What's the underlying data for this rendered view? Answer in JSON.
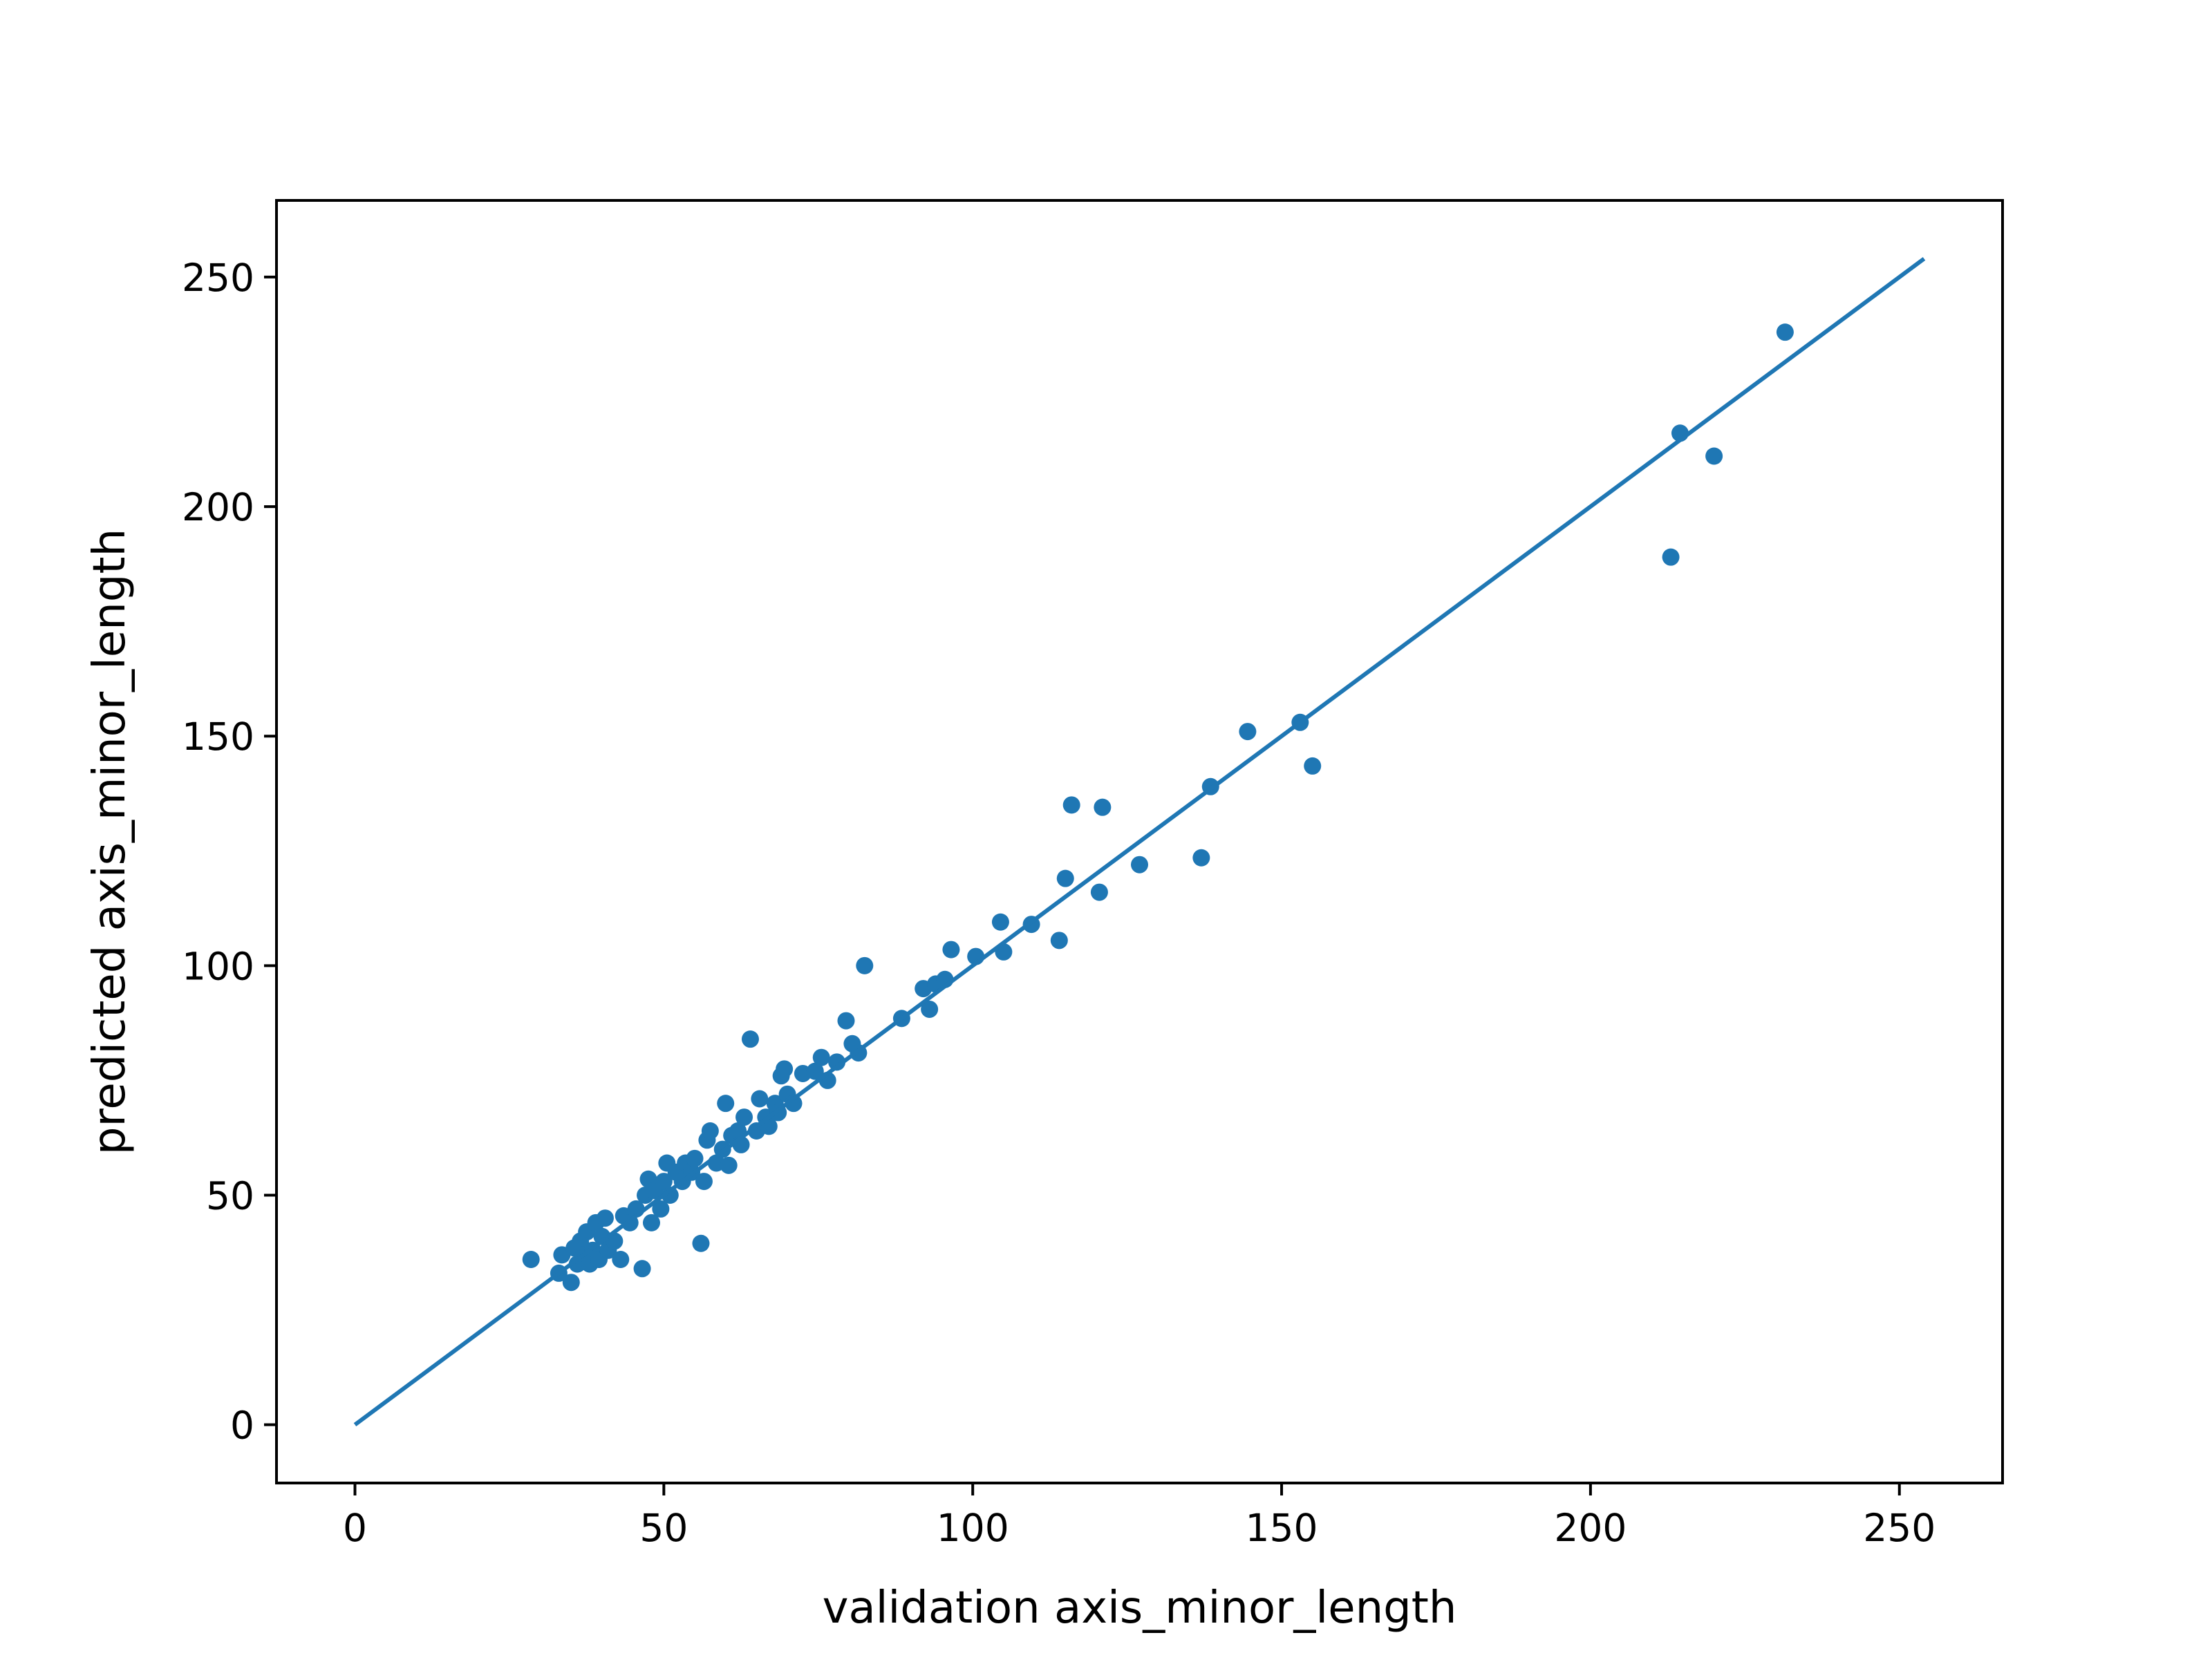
{
  "chart_data": {
    "type": "scatter",
    "title": "",
    "xlabel": "validation axis_minor_length",
    "ylabel": "predicted axis_minor_length",
    "xlim": [
      -12.7,
      266.7
    ],
    "ylim": [
      -12.7,
      266.7
    ],
    "xticks": [
      0,
      50,
      100,
      150,
      200,
      250
    ],
    "yticks": [
      0,
      50,
      100,
      150,
      200,
      250
    ],
    "grid": false,
    "colors": {
      "series": "#1f77b4",
      "axes": "#000000",
      "background": "#ffffff"
    },
    "series": [
      {
        "name": "predictions",
        "type": "scatter",
        "points": [
          [
            28.5,
            36
          ],
          [
            33,
            33
          ],
          [
            33.5,
            37
          ],
          [
            35,
            31
          ],
          [
            35.5,
            38.5
          ],
          [
            36,
            35
          ],
          [
            36.5,
            40
          ],
          [
            37,
            37
          ],
          [
            37.5,
            42
          ],
          [
            38,
            35
          ],
          [
            38.5,
            38
          ],
          [
            39,
            44
          ],
          [
            39.5,
            36
          ],
          [
            40,
            41
          ],
          [
            40.5,
            45
          ],
          [
            41,
            38
          ],
          [
            42,
            40
          ],
          [
            43,
            36
          ],
          [
            43.5,
            45.5
          ],
          [
            44.5,
            44
          ],
          [
            45.5,
            47
          ],
          [
            46.5,
            34
          ],
          [
            47.5,
            53.5
          ],
          [
            47,
            50
          ],
          [
            48,
            44
          ],
          [
            48.5,
            51
          ],
          [
            49.5,
            47
          ],
          [
            50,
            53
          ],
          [
            50.5,
            57
          ],
          [
            51,
            50
          ],
          [
            52,
            55
          ],
          [
            53,
            53
          ],
          [
            53.5,
            57
          ],
          [
            54.5,
            55
          ],
          [
            55,
            58
          ],
          [
            56,
            39.5
          ],
          [
            56.5,
            53
          ],
          [
            57,
            62
          ],
          [
            57.5,
            64
          ],
          [
            58.5,
            57
          ],
          [
            59.5,
            60
          ],
          [
            60,
            70
          ],
          [
            60.5,
            56.5
          ],
          [
            61,
            63
          ],
          [
            62,
            64
          ],
          [
            62.5,
            61
          ],
          [
            63,
            67
          ],
          [
            64,
            84
          ],
          [
            65,
            64
          ],
          [
            65.5,
            71
          ],
          [
            66.5,
            67
          ],
          [
            67,
            65
          ],
          [
            68,
            70
          ],
          [
            68.5,
            68
          ],
          [
            69,
            76
          ],
          [
            69.5,
            77.5
          ],
          [
            70,
            72
          ],
          [
            71,
            70
          ],
          [
            72.5,
            76.5
          ],
          [
            74.5,
            77
          ],
          [
            75.5,
            80
          ],
          [
            76.5,
            75
          ],
          [
            78,
            79
          ],
          [
            79.5,
            88
          ],
          [
            80.5,
            83
          ],
          [
            81.5,
            81
          ],
          [
            82.5,
            100
          ],
          [
            88.5,
            88.5
          ],
          [
            92,
            95
          ],
          [
            93,
            90.5
          ],
          [
            94,
            96
          ],
          [
            95.5,
            97
          ],
          [
            96.5,
            103.5
          ],
          [
            100.5,
            102
          ],
          [
            104.5,
            109.5
          ],
          [
            105,
            103
          ],
          [
            109.5,
            109
          ],
          [
            114,
            105.5
          ],
          [
            115,
            119
          ],
          [
            116,
            135
          ],
          [
            120.5,
            116
          ],
          [
            121,
            134.5
          ],
          [
            127,
            122
          ],
          [
            137,
            123.5
          ],
          [
            138.5,
            139
          ],
          [
            144.5,
            151
          ],
          [
            153,
            153
          ],
          [
            155,
            143.5
          ],
          [
            213,
            189
          ],
          [
            214.5,
            216
          ],
          [
            220,
            211
          ],
          [
            231.5,
            238
          ]
        ]
      },
      {
        "name": "identity line",
        "type": "line",
        "points": [
          [
            0,
            0
          ],
          [
            254,
            254
          ]
        ]
      }
    ]
  }
}
